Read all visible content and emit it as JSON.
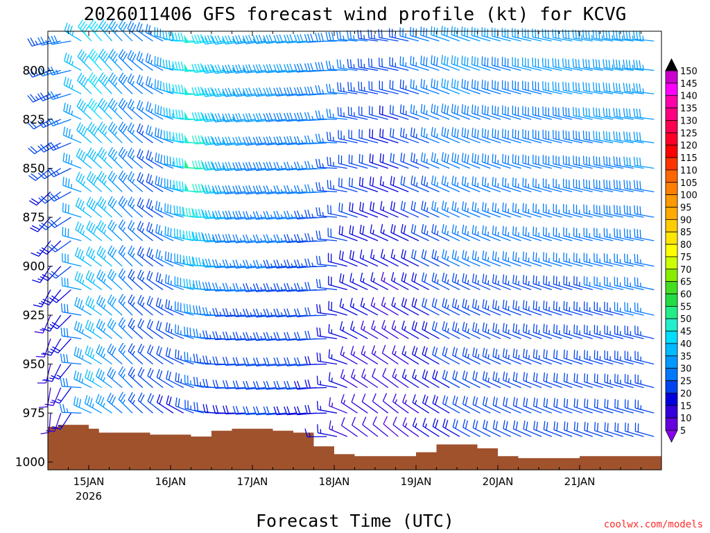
{
  "chart_data": {
    "type": "wind-barb-profile",
    "title": "2026011406 GFS forecast wind profile (kt) for KCVG",
    "xlabel": "Forecast Time (UTC)",
    "ylabel": "",
    "x_ticks": [
      {
        "label": "15JAN",
        "sublabel": "2026",
        "hour": 18
      },
      {
        "label": "16JAN",
        "sublabel": "",
        "hour": 42
      },
      {
        "label": "17JAN",
        "sublabel": "",
        "hour": 66
      },
      {
        "label": "18JAN",
        "sublabel": "",
        "hour": 90
      },
      {
        "label": "19JAN",
        "sublabel": "",
        "hour": 114
      },
      {
        "label": "20JAN",
        "sublabel": "",
        "hour": 138
      },
      {
        "label": "21JAN",
        "sublabel": "",
        "hour": 162
      }
    ],
    "x_range_hours": [
      6,
      186
    ],
    "y_ticks": [
      800,
      825,
      850,
      875,
      900,
      925,
      950,
      975,
      1000
    ],
    "y_range_hPa": [
      780,
      1004
    ],
    "levels_hPa": [
      785,
      800,
      812,
      825,
      837,
      850,
      862,
      875,
      887,
      900,
      912,
      925,
      937,
      950,
      962,
      975,
      987
    ],
    "barb_interval_hours": 3,
    "colorbar": {
      "labels": [
        "150",
        "145",
        "140",
        "135",
        "130",
        "125",
        "120",
        "115",
        "110",
        "105",
        "100",
        "95",
        "90",
        "85",
        "80",
        "75",
        "70",
        "65",
        "60",
        "55",
        "50",
        "45",
        "40",
        "35",
        "30",
        "25",
        "20",
        "15",
        "10",
        "5"
      ],
      "colors": [
        "#cc00cc",
        "#ff00ff",
        "#ff00aa",
        "#ff0080",
        "#ff0050",
        "#ff0028",
        "#ff0000",
        "#ff3300",
        "#ff6600",
        "#ff7f00",
        "#ff9900",
        "#ffaa00",
        "#ffcc00",
        "#ffe600",
        "#ffff00",
        "#ccff00",
        "#88ee00",
        "#44dd22",
        "#22dd44",
        "#22ee88",
        "#22eecc",
        "#00ddff",
        "#00bbff",
        "#0099ff",
        "#0077ff",
        "#0044ee",
        "#0000dd",
        "#3300dd",
        "#6600dd",
        "#8800ee"
      ]
    },
    "wind_keyframes": [
      {
        "hour": 6,
        "low_dir": 180,
        "low_spd": 10,
        "high_dir": 255,
        "high_spd": 25
      },
      {
        "hour": 12,
        "low_dir": 210,
        "low_spd": 15,
        "high_dir": 260,
        "high_spd": 28
      },
      {
        "hour": 16,
        "low_dir": 290,
        "low_spd": 30,
        "high_dir": 315,
        "high_spd": 40
      },
      {
        "hour": 22,
        "low_dir": 300,
        "low_spd": 35,
        "high_dir": 320,
        "high_spd": 42
      },
      {
        "hour": 30,
        "low_dir": 315,
        "low_spd": 25,
        "high_dir": 315,
        "high_spd": 30
      },
      {
        "hour": 38,
        "low_dir": 310,
        "low_spd": 20,
        "high_dir": 300,
        "high_spd": 25
      },
      {
        "hour": 45,
        "low_dir": 300,
        "low_spd": 18,
        "high_dir": 275,
        "high_spd": 38
      },
      {
        "hour": 51,
        "low_dir": 285,
        "low_spd": 22,
        "high_dir": 265,
        "high_spd": 48
      },
      {
        "hour": 58,
        "low_dir": 270,
        "low_spd": 18,
        "high_dir": 260,
        "high_spd": 38
      },
      {
        "hour": 70,
        "low_dir": 265,
        "low_spd": 20,
        "high_dir": 262,
        "high_spd": 33
      },
      {
        "hour": 86,
        "low_dir": 265,
        "low_spd": 18,
        "high_dir": 265,
        "high_spd": 30
      },
      {
        "hour": 96,
        "low_dir": 305,
        "low_spd": 12,
        "high_dir": 275,
        "high_spd": 27
      },
      {
        "hour": 108,
        "low_dir": 310,
        "low_spd": 10,
        "high_dir": 280,
        "high_spd": 22
      },
      {
        "hour": 114,
        "low_dir": 305,
        "low_spd": 14,
        "high_dir": 285,
        "high_spd": 26
      },
      {
        "hour": 126,
        "low_dir": 300,
        "low_spd": 20,
        "high_dir": 290,
        "high_spd": 32
      },
      {
        "hour": 140,
        "low_dir": 295,
        "low_spd": 22,
        "high_dir": 285,
        "high_spd": 30
      },
      {
        "hour": 160,
        "low_dir": 290,
        "low_spd": 20,
        "high_dir": 280,
        "high_spd": 32
      },
      {
        "hour": 186,
        "low_dir": 285,
        "low_spd": 22,
        "high_dir": 275,
        "high_spd": 35
      }
    ],
    "surface_pressure": [
      {
        "hour": 6,
        "hPa": 982
      },
      {
        "hour": 9,
        "hPa": 981
      },
      {
        "hour": 15,
        "hPa": 981
      },
      {
        "hour": 18,
        "hPa": 983
      },
      {
        "hour": 21,
        "hPa": 985
      },
      {
        "hour": 30,
        "hPa": 985
      },
      {
        "hour": 36,
        "hPa": 986
      },
      {
        "hour": 42,
        "hPa": 986
      },
      {
        "hour": 48,
        "hPa": 987
      },
      {
        "hour": 54,
        "hPa": 984
      },
      {
        "hour": 60,
        "hPa": 983
      },
      {
        "hour": 66,
        "hPa": 983
      },
      {
        "hour": 72,
        "hPa": 984
      },
      {
        "hour": 78,
        "hPa": 985
      },
      {
        "hour": 84,
        "hPa": 992
      },
      {
        "hour": 90,
        "hPa": 996
      },
      {
        "hour": 96,
        "hPa": 997
      },
      {
        "hour": 102,
        "hPa": 997
      },
      {
        "hour": 108,
        "hPa": 997
      },
      {
        "hour": 114,
        "hPa": 995
      },
      {
        "hour": 120,
        "hPa": 991
      },
      {
        "hour": 126,
        "hPa": 991
      },
      {
        "hour": 132,
        "hPa": 993
      },
      {
        "hour": 138,
        "hPa": 997
      },
      {
        "hour": 144,
        "hPa": 998
      },
      {
        "hour": 150,
        "hPa": 998
      },
      {
        "hour": 156,
        "hPa": 998
      },
      {
        "hour": 162,
        "hPa": 997
      },
      {
        "hour": 174,
        "hPa": 997
      },
      {
        "hour": 186,
        "hPa": 997
      }
    ]
  },
  "credit": "coolwx.com/models"
}
